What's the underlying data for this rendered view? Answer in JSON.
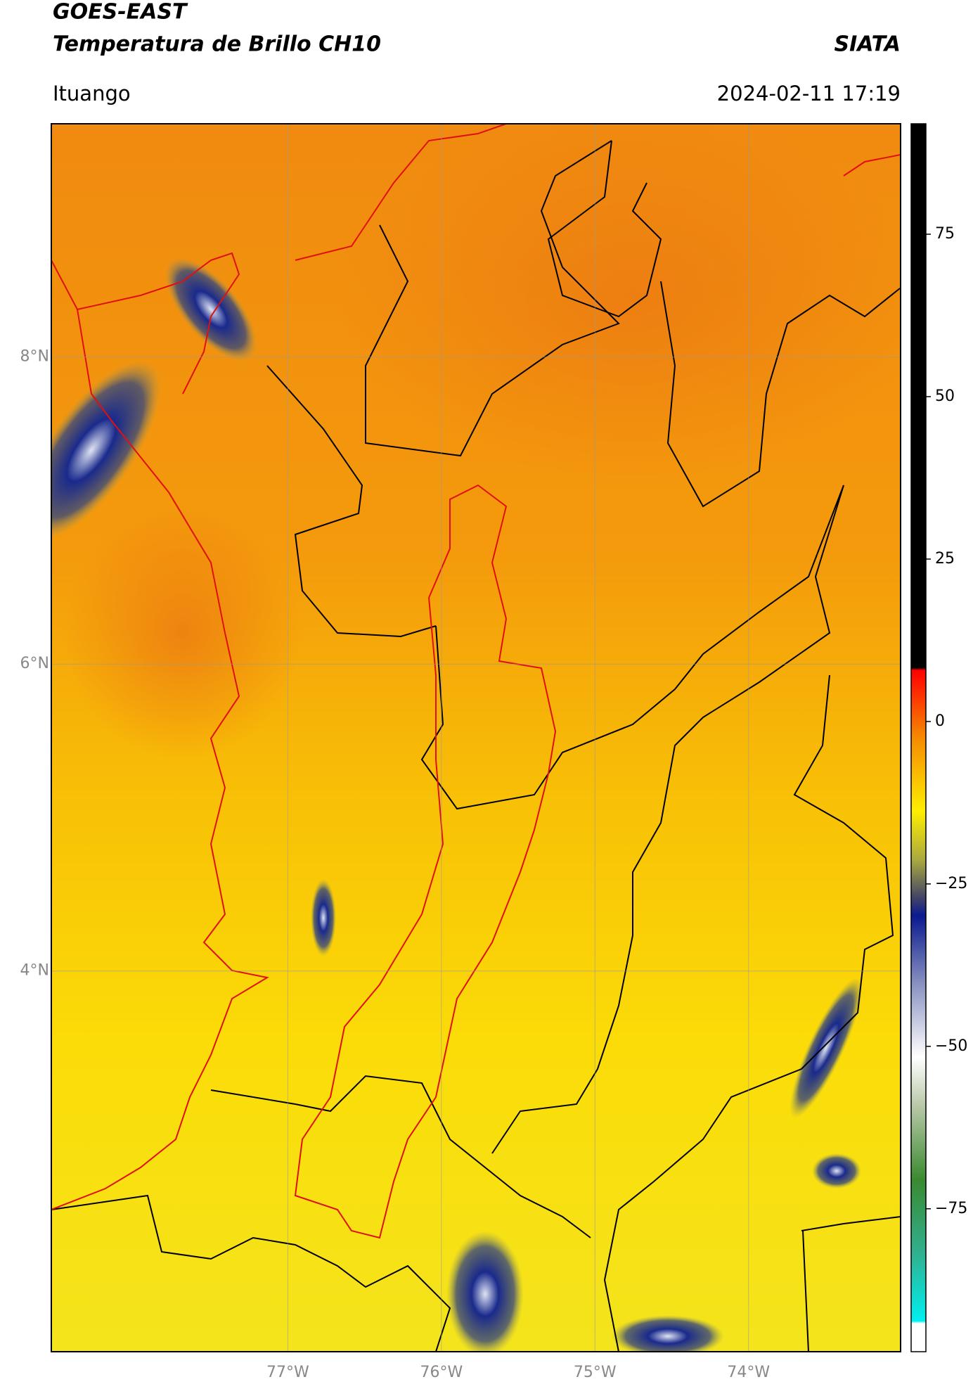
{
  "header": {
    "title_line1": "GOES-EAST",
    "title_line2": "Temperatura de Brillo CH10",
    "org": "SIATA",
    "location": "Ituango",
    "datetime": "2024-02-11 17:19"
  },
  "map": {
    "lonlim": [
      -78.54,
      -73.01
    ],
    "latlim": [
      1.52,
      9.52
    ],
    "xticks": [
      {
        "value": -77,
        "label": "77°W"
      },
      {
        "value": -76,
        "label": "76°W"
      },
      {
        "value": -75,
        "label": "75°W"
      },
      {
        "value": -74,
        "label": "74°W"
      }
    ],
    "yticks": [
      {
        "value": 8,
        "label": "8°N"
      },
      {
        "value": 6,
        "label": "6°N"
      },
      {
        "value": 4,
        "label": "4°N"
      }
    ]
  },
  "colorbar": {
    "lim": [
      -97,
      92
    ],
    "ticks": [
      75,
      50,
      25,
      0,
      {
        "value": -25,
        "label": "−25"
      },
      {
        "value": -50,
        "label": "−50"
      },
      {
        "value": -75,
        "label": "−75"
      }
    ]
  }
}
